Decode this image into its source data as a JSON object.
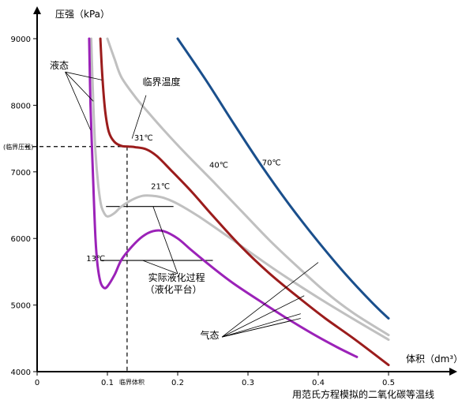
{
  "chart_data": {
    "type": "line",
    "caption": "用范氏方程模拟的二氧化碳等温线",
    "ylabel": "压强（kPa）",
    "xlabel": "体积（dm³）",
    "xlim": [
      0,
      0.6
    ],
    "ylim": [
      4000,
      9300
    ],
    "x_ticks": [
      {
        "value": 0,
        "label": "0"
      },
      {
        "value": 0.1,
        "label": "0.1"
      },
      {
        "value": 0.2,
        "label": "0.2"
      },
      {
        "value": 0.3,
        "label": "0.3"
      },
      {
        "value": 0.4,
        "label": "0.4"
      },
      {
        "value": 0.5,
        "label": "0.5"
      }
    ],
    "y_ticks": [
      {
        "value": 4000,
        "label": "4000"
      },
      {
        "value": 5000,
        "label": "5000"
      },
      {
        "value": 6000,
        "label": "6000"
      },
      {
        "value": 7000,
        "label": "7000"
      },
      {
        "value": 8000,
        "label": "8000"
      },
      {
        "value": 9000,
        "label": "9000"
      }
    ],
    "critical": {
      "x": 0.128,
      "y": 7380,
      "x_label": "临界体积",
      "y_label": "(临界压强)"
    },
    "series": [
      {
        "name": "13℃",
        "color": "#9b22b8",
        "points": [
          [
            0.074,
            9000
          ],
          [
            0.076,
            8000
          ],
          [
            0.08,
            6800
          ],
          [
            0.083,
            6000
          ],
          [
            0.086,
            5600
          ],
          [
            0.09,
            5350
          ],
          [
            0.095,
            5260
          ],
          [
            0.1,
            5280
          ],
          [
            0.11,
            5450
          ],
          [
            0.12,
            5680
          ],
          [
            0.135,
            5880
          ],
          [
            0.15,
            6030
          ],
          [
            0.165,
            6110
          ],
          [
            0.18,
            6110
          ],
          [
            0.2,
            6000
          ],
          [
            0.22,
            5820
          ],
          [
            0.25,
            5560
          ],
          [
            0.28,
            5320
          ],
          [
            0.32,
            5040
          ],
          [
            0.36,
            4770
          ],
          [
            0.4,
            4520
          ],
          [
            0.43,
            4350
          ],
          [
            0.455,
            4220
          ]
        ]
      },
      {
        "name": "21℃",
        "color": "#c0c0c0",
        "points": [
          [
            0.077,
            9000
          ],
          [
            0.08,
            8000
          ],
          [
            0.083,
            7300
          ],
          [
            0.087,
            6800
          ],
          [
            0.091,
            6500
          ],
          [
            0.096,
            6370
          ],
          [
            0.101,
            6330
          ],
          [
            0.11,
            6380
          ],
          [
            0.12,
            6480
          ],
          [
            0.135,
            6580
          ],
          [
            0.15,
            6640
          ],
          [
            0.165,
            6640
          ],
          [
            0.18,
            6610
          ],
          [
            0.2,
            6520
          ],
          [
            0.23,
            6330
          ],
          [
            0.27,
            6040
          ],
          [
            0.31,
            5740
          ],
          [
            0.35,
            5450
          ],
          [
            0.4,
            5110
          ],
          [
            0.45,
            4790
          ],
          [
            0.5,
            4480
          ]
        ]
      },
      {
        "name": "31℃",
        "color": "#9b1c1c",
        "points": [
          [
            0.09,
            9000
          ],
          [
            0.093,
            8400
          ],
          [
            0.097,
            7900
          ],
          [
            0.102,
            7600
          ],
          [
            0.11,
            7450
          ],
          [
            0.12,
            7390
          ],
          [
            0.13,
            7380
          ],
          [
            0.14,
            7370
          ],
          [
            0.155,
            7340
          ],
          [
            0.17,
            7240
          ],
          [
            0.19,
            7030
          ],
          [
            0.22,
            6700
          ],
          [
            0.25,
            6340
          ],
          [
            0.29,
            5880
          ],
          [
            0.33,
            5480
          ],
          [
            0.37,
            5130
          ],
          [
            0.41,
            4800
          ],
          [
            0.45,
            4500
          ],
          [
            0.5,
            4100
          ]
        ]
      },
      {
        "name": "40℃",
        "color": "#c0c0c0",
        "points": [
          [
            0.1,
            9000
          ],
          [
            0.11,
            8700
          ],
          [
            0.12,
            8420
          ],
          [
            0.14,
            8120
          ],
          [
            0.16,
            7870
          ],
          [
            0.18,
            7630
          ],
          [
            0.21,
            7290
          ],
          [
            0.25,
            6860
          ],
          [
            0.29,
            6420
          ],
          [
            0.33,
            5980
          ],
          [
            0.37,
            5580
          ],
          [
            0.41,
            5200
          ],
          [
            0.45,
            4880
          ],
          [
            0.5,
            4550
          ]
        ]
      },
      {
        "name": "70℃",
        "color": "#1a4f8c",
        "points": [
          [
            0.2,
            9000
          ],
          [
            0.24,
            8380
          ],
          [
            0.28,
            7720
          ],
          [
            0.32,
            7080
          ],
          [
            0.36,
            6490
          ],
          [
            0.4,
            5950
          ],
          [
            0.44,
            5450
          ],
          [
            0.48,
            5000
          ],
          [
            0.5,
            4800
          ]
        ]
      }
    ],
    "plateaus": [
      {
        "name": "21℃",
        "x1": 0.098,
        "x2": 0.194,
        "y": 6480
      },
      {
        "name": "13℃",
        "x1": 0.09,
        "x2": 0.25,
        "y": 5670
      }
    ],
    "temp_labels": [
      {
        "text": "13℃",
        "x": 0.07,
        "y": 5660
      },
      {
        "text": "21℃",
        "x": 0.162,
        "y": 6740
      },
      {
        "text": "31℃",
        "x": 0.138,
        "y": 7470
      },
      {
        "text": "40℃",
        "x": 0.245,
        "y": 7060
      },
      {
        "text": "70℃",
        "x": 0.32,
        "y": 7100
      }
    ],
    "annotations": [
      {
        "text": "液态",
        "label_at": [
          0.018,
          8550
        ],
        "from": [
          0.04,
          8500
        ],
        "targets": [
          [
            0.092,
            8380
          ],
          [
            0.08,
            8060
          ],
          [
            0.076,
            7630
          ]
        ]
      },
      {
        "text": "临界温度",
        "label_at": [
          0.15,
          8300
        ],
        "from": [
          0.155,
          8150
        ],
        "targets": [
          [
            0.135,
            7500
          ]
        ]
      },
      {
        "text": "实际液化过程",
        "sub_text": "（液化平台）",
        "label_at": [
          0.158,
          5360
        ],
        "from": [
          0.2,
          5470
        ],
        "targets": [
          [
            0.165,
            6480
          ],
          [
            0.15,
            5670
          ]
        ]
      },
      {
        "text": "气态",
        "label_at": [
          0.232,
          4500
        ],
        "from": [
          0.263,
          4520
        ],
        "targets": [
          [
            0.4,
            5640
          ],
          [
            0.38,
            5140
          ],
          [
            0.375,
            4800
          ],
          [
            0.36,
            4760
          ],
          [
            0.375,
            4870
          ]
        ]
      }
    ]
  }
}
